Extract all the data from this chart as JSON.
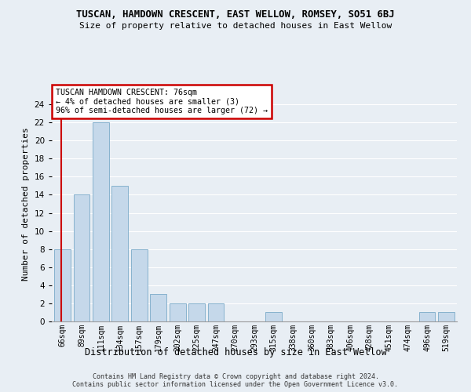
{
  "title": "TUSCAN, HAMDOWN CRESCENT, EAST WELLOW, ROMSEY, SO51 6BJ",
  "subtitle": "Size of property relative to detached houses in East Wellow",
  "xlabel": "Distribution of detached houses by size in East Wellow",
  "ylabel": "Number of detached properties",
  "bin_labels": [
    "66sqm",
    "89sqm",
    "111sqm",
    "134sqm",
    "157sqm",
    "179sqm",
    "202sqm",
    "225sqm",
    "247sqm",
    "270sqm",
    "293sqm",
    "315sqm",
    "338sqm",
    "360sqm",
    "383sqm",
    "406sqm",
    "428sqm",
    "451sqm",
    "474sqm",
    "496sqm",
    "519sqm"
  ],
  "bar_values": [
    8,
    14,
    22,
    15,
    8,
    3,
    2,
    2,
    2,
    0,
    0,
    1,
    0,
    0,
    0,
    0,
    0,
    0,
    0,
    1,
    1
  ],
  "bar_color": "#c5d8ea",
  "bar_edge_color": "#7aaac8",
  "annotation_title": "TUSCAN HAMDOWN CRESCENT: 76sqm",
  "annotation_line1": "← 4% of detached houses are smaller (3)",
  "annotation_line2": "96% of semi-detached houses are larger (72) →",
  "annotation_box_color": "#ffffff",
  "annotation_box_edge": "#cc0000",
  "vline_color": "#cc0000",
  "vline_x": -0.07,
  "ylim": [
    0,
    26
  ],
  "yticks": [
    0,
    2,
    4,
    6,
    8,
    10,
    12,
    14,
    16,
    18,
    20,
    22,
    24
  ],
  "background_color": "#e8eef4",
  "grid_color": "#ffffff",
  "footer_line1": "Contains HM Land Registry data © Crown copyright and database right 2024.",
  "footer_line2": "Contains public sector information licensed under the Open Government Licence v3.0."
}
